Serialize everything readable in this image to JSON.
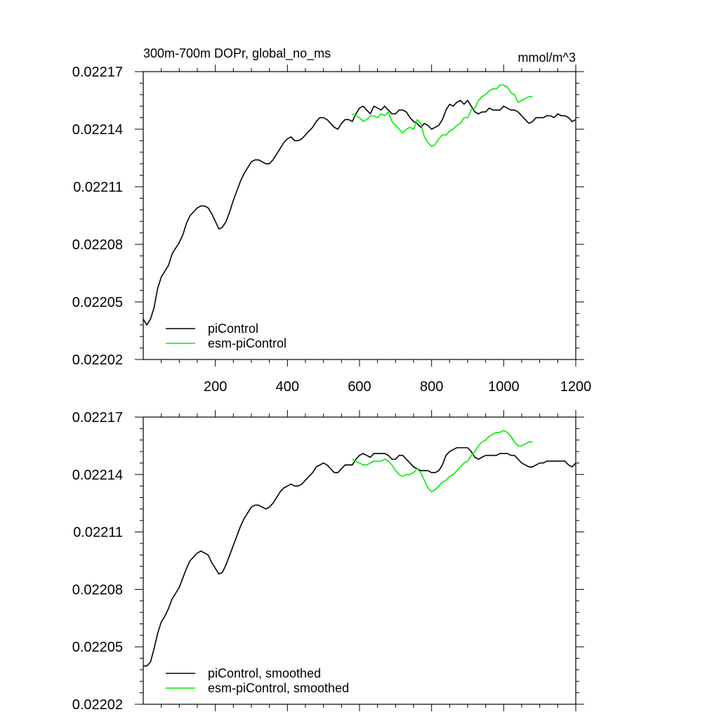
{
  "figure": {
    "title": "300m-700m DOPr, global_no_ms",
    "units": "mmol/m^3"
  },
  "colors": {
    "piControl": "#000000",
    "esm": "#00ee00"
  },
  "chart_data": [
    {
      "type": "line",
      "title": "300m-700m DOPr, global_no_ms",
      "units_label": "mmol/m^3",
      "xlabel": "",
      "ylabel": "",
      "xlim": [
        0,
        1200
      ],
      "ylim": [
        0.02202,
        0.02217
      ],
      "xticks": [
        200,
        400,
        600,
        800,
        1000,
        1200
      ],
      "xtick_labels": [
        "200",
        "400",
        "600",
        "800",
        "1000",
        "1200"
      ],
      "yticks": [
        0.02202,
        0.02205,
        0.02208,
        0.02211,
        0.02214,
        0.02217
      ],
      "ytick_labels": [
        "0.02202",
        "0.02205",
        "0.02208",
        "0.02211",
        "0.02214",
        "0.02217"
      ],
      "legend": {
        "placement": "bottom-left",
        "entries": [
          "piControl",
          "esm-piControl"
        ]
      },
      "series": [
        {
          "name": "piControl",
          "color": "#000000",
          "x": [
            0,
            10,
            20,
            30,
            40,
            50,
            60,
            70,
            80,
            90,
            100,
            110,
            120,
            130,
            140,
            150,
            160,
            170,
            180,
            190,
            200,
            210,
            220,
            230,
            240,
            250,
            260,
            270,
            280,
            290,
            300,
            310,
            320,
            330,
            340,
            350,
            360,
            370,
            380,
            390,
            400,
            410,
            420,
            430,
            440,
            450,
            460,
            470,
            480,
            490,
            500,
            510,
            520,
            530,
            540,
            550,
            560,
            570,
            580,
            590,
            600,
            610,
            620,
            630,
            640,
            650,
            660,
            670,
            680,
            690,
            700,
            710,
            720,
            730,
            740,
            750,
            760,
            770,
            780,
            790,
            800,
            810,
            820,
            830,
            840,
            850,
            860,
            870,
            880,
            890,
            900,
            910,
            920,
            930,
            940,
            950,
            960,
            970,
            980,
            990,
            1000,
            1010,
            1020,
            1030,
            1040,
            1050,
            1060,
            1070,
            1080,
            1090,
            1100,
            1110,
            1120,
            1130,
            1140,
            1150,
            1160,
            1170,
            1180,
            1190,
            1200
          ],
          "y": [
            0.022041,
            0.022038,
            0.022041,
            0.022047,
            0.022057,
            0.022063,
            0.022066,
            0.022069,
            0.022075,
            0.022078,
            0.022081,
            0.022085,
            0.022091,
            0.022095,
            0.022097,
            0.022099,
            0.0221,
            0.0221,
            0.022099,
            0.022096,
            0.022092,
            0.022088,
            0.022089,
            0.022092,
            0.022097,
            0.022103,
            0.022108,
            0.022113,
            0.022117,
            0.02212,
            0.022123,
            0.022124,
            0.022124,
            0.022123,
            0.022122,
            0.022122,
            0.022124,
            0.022127,
            0.02213,
            0.022133,
            0.022135,
            0.022136,
            0.022134,
            0.022134,
            0.022135,
            0.022137,
            0.022139,
            0.022141,
            0.022144,
            0.022146,
            0.022146,
            0.022145,
            0.022143,
            0.022141,
            0.02214,
            0.022143,
            0.022145,
            0.022145,
            0.022144,
            0.022148,
            0.022151,
            0.022152,
            0.02215,
            0.022148,
            0.022152,
            0.022151,
            0.02215,
            0.022152,
            0.02215,
            0.022148,
            0.022148,
            0.02215,
            0.02215,
            0.022149,
            0.022146,
            0.022144,
            0.022143,
            0.022141,
            0.022143,
            0.022142,
            0.02214,
            0.022141,
            0.022142,
            0.022145,
            0.02215,
            0.022153,
            0.022152,
            0.022154,
            0.022155,
            0.022153,
            0.022155,
            0.022152,
            0.022149,
            0.022148,
            0.022149,
            0.022149,
            0.022151,
            0.02215,
            0.02215,
            0.02215,
            0.022152,
            0.022151,
            0.02215,
            0.02215,
            0.022149,
            0.022147,
            0.022145,
            0.022143,
            0.022144,
            0.022146,
            0.022146,
            0.022146,
            0.022147,
            0.022147,
            0.022146,
            0.022148,
            0.022147,
            0.022147,
            0.022146,
            0.022144,
            0.022145
          ]
        },
        {
          "name": "esm-piControl",
          "color": "#00ee00",
          "x": [
            580,
            590,
            600,
            610,
            620,
            630,
            640,
            650,
            660,
            670,
            680,
            690,
            700,
            710,
            720,
            730,
            740,
            750,
            760,
            770,
            780,
            790,
            800,
            810,
            820,
            830,
            840,
            850,
            860,
            870,
            880,
            890,
            900,
            910,
            920,
            930,
            940,
            950,
            960,
            970,
            980,
            990,
            1000,
            1010,
            1020,
            1030,
            1040,
            1050,
            1060,
            1070,
            1080
          ],
          "y": [
            0.022148,
            0.022147,
            0.022146,
            0.022144,
            0.022145,
            0.022147,
            0.022147,
            0.022146,
            0.022148,
            0.022147,
            0.022149,
            0.022144,
            0.022142,
            0.02214,
            0.022138,
            0.02214,
            0.022141,
            0.02214,
            0.022145,
            0.022143,
            0.022136,
            0.022133,
            0.022131,
            0.022132,
            0.022135,
            0.022137,
            0.022137,
            0.022139,
            0.02214,
            0.022142,
            0.022143,
            0.022146,
            0.022146,
            0.02215,
            0.022151,
            0.022155,
            0.022157,
            0.022158,
            0.02216,
            0.022161,
            0.022161,
            0.022163,
            0.022163,
            0.022162,
            0.022159,
            0.022158,
            0.022154,
            0.022155,
            0.022156,
            0.022157,
            0.022157
          ]
        }
      ]
    },
    {
      "type": "line",
      "title": "",
      "xlabel": "",
      "ylabel": "",
      "xlim": [
        0,
        1200
      ],
      "ylim": [
        0.02202,
        0.02217
      ],
      "xticks": [
        200,
        400,
        600,
        800,
        1000,
        1200
      ],
      "yticks": [
        0.02202,
        0.02205,
        0.02208,
        0.02211,
        0.02214,
        0.02217
      ],
      "ytick_labels": [
        "0.02202",
        "0.02205",
        "0.02208",
        "0.02211",
        "0.02214",
        "0.02217"
      ],
      "legend": {
        "placement": "bottom-left",
        "entries": [
          "piControl, smoothed",
          "esm-piControl, smoothed"
        ]
      },
      "series": [
        {
          "name": "piControl, smoothed",
          "color": "#000000",
          "x": [
            0,
            10,
            20,
            30,
            40,
            50,
            60,
            70,
            80,
            90,
            100,
            110,
            120,
            130,
            140,
            150,
            160,
            170,
            180,
            190,
            200,
            210,
            220,
            230,
            240,
            250,
            260,
            270,
            280,
            290,
            300,
            310,
            320,
            330,
            340,
            350,
            360,
            370,
            380,
            390,
            400,
            410,
            420,
            430,
            440,
            450,
            460,
            470,
            480,
            490,
            500,
            510,
            520,
            530,
            540,
            550,
            560,
            570,
            580,
            590,
            600,
            610,
            620,
            630,
            640,
            650,
            660,
            670,
            680,
            690,
            700,
            710,
            720,
            730,
            740,
            750,
            760,
            770,
            780,
            790,
            800,
            810,
            820,
            830,
            840,
            850,
            860,
            870,
            880,
            890,
            900,
            910,
            920,
            930,
            940,
            950,
            960,
            970,
            980,
            990,
            1000,
            1010,
            1020,
            1030,
            1040,
            1050,
            1060,
            1070,
            1080,
            1090,
            1100,
            1110,
            1120,
            1130,
            1140,
            1150,
            1160,
            1170,
            1180,
            1190,
            1200
          ],
          "y": [
            0.02204,
            0.02204,
            0.022042,
            0.022049,
            0.022057,
            0.022063,
            0.022066,
            0.02207,
            0.022075,
            0.022078,
            0.022081,
            0.022086,
            0.022091,
            0.022095,
            0.022097,
            0.022099,
            0.0221,
            0.022099,
            0.022098,
            0.022094,
            0.022091,
            0.022088,
            0.022089,
            0.022093,
            0.022098,
            0.022103,
            0.022108,
            0.022113,
            0.022117,
            0.02212,
            0.022123,
            0.022124,
            0.022124,
            0.022123,
            0.022122,
            0.022123,
            0.022125,
            0.022128,
            0.022131,
            0.022133,
            0.022134,
            0.022135,
            0.022134,
            0.022134,
            0.022135,
            0.022137,
            0.022139,
            0.022141,
            0.022144,
            0.022145,
            0.022146,
            0.022145,
            0.022143,
            0.022141,
            0.022141,
            0.022143,
            0.022145,
            0.022145,
            0.022145,
            0.022148,
            0.02215,
            0.022151,
            0.02215,
            0.022149,
            0.022151,
            0.022151,
            0.022151,
            0.022151,
            0.02215,
            0.022148,
            0.022148,
            0.02215,
            0.02215,
            0.022148,
            0.022146,
            0.022144,
            0.022143,
            0.022142,
            0.022142,
            0.022142,
            0.022141,
            0.022141,
            0.022142,
            0.022145,
            0.02215,
            0.022152,
            0.022153,
            0.022154,
            0.022154,
            0.022154,
            0.022154,
            0.022152,
            0.022149,
            0.022148,
            0.022149,
            0.02215,
            0.02215,
            0.02215,
            0.02215,
            0.022151,
            0.022151,
            0.022151,
            0.02215,
            0.02215,
            0.022148,
            0.022146,
            0.022145,
            0.022144,
            0.022144,
            0.022145,
            0.022146,
            0.022146,
            0.022147,
            0.022147,
            0.022147,
            0.022147,
            0.022147,
            0.022147,
            0.022145,
            0.022144,
            0.022146
          ]
        },
        {
          "name": "esm-piControl, smoothed",
          "color": "#00ee00",
          "x": [
            580,
            590,
            600,
            610,
            620,
            630,
            640,
            650,
            660,
            670,
            680,
            690,
            700,
            710,
            720,
            730,
            740,
            750,
            760,
            770,
            780,
            790,
            800,
            810,
            820,
            830,
            840,
            850,
            860,
            870,
            880,
            890,
            900,
            910,
            920,
            930,
            940,
            950,
            960,
            970,
            980,
            990,
            1000,
            1010,
            1020,
            1030,
            1040,
            1050,
            1060,
            1070,
            1080
          ],
          "y": [
            0.022148,
            0.022147,
            0.022146,
            0.022145,
            0.022145,
            0.022146,
            0.022147,
            0.022147,
            0.022147,
            0.022148,
            0.022147,
            0.022145,
            0.022142,
            0.02214,
            0.022139,
            0.02214,
            0.02214,
            0.022141,
            0.022143,
            0.022141,
            0.022137,
            0.022133,
            0.022131,
            0.022132,
            0.022134,
            0.022136,
            0.022137,
            0.022139,
            0.02214,
            0.022142,
            0.022144,
            0.022146,
            0.022147,
            0.02215,
            0.022152,
            0.022155,
            0.022157,
            0.022158,
            0.02216,
            0.022161,
            0.022162,
            0.022162,
            0.022163,
            0.022162,
            0.02216,
            0.022157,
            0.022155,
            0.022155,
            0.022156,
            0.022157,
            0.022157
          ]
        }
      ]
    }
  ]
}
